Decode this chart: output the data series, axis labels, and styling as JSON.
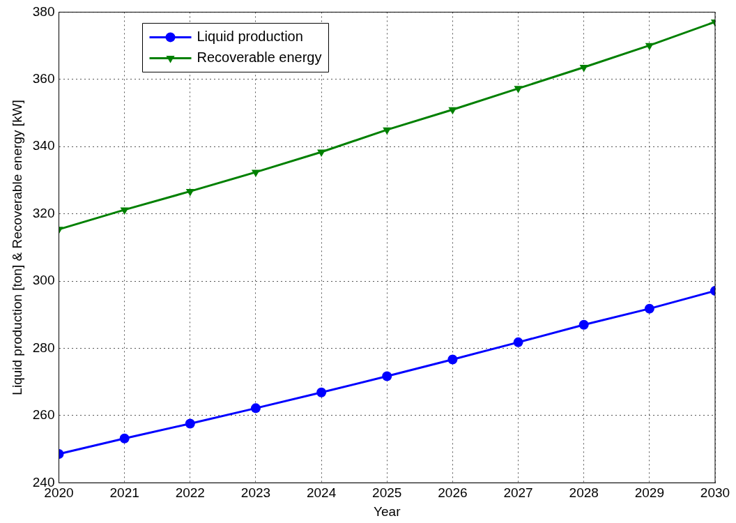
{
  "chart_data": {
    "type": "line",
    "xlabel": "Year",
    "ylabel": "Liquid production [ton] & Recoverable energy [kW]",
    "x": [
      2020,
      2021,
      2022,
      2023,
      2024,
      2025,
      2026,
      2027,
      2028,
      2029,
      2030
    ],
    "series": [
      {
        "name": "Liquid production",
        "color": "#0000ff",
        "marker": "circle",
        "values": [
          248.6,
          253.2,
          257.6,
          262.2,
          266.9,
          271.7,
          276.7,
          281.8,
          287.0,
          291.8,
          297.1
        ]
      },
      {
        "name": "Recoverable energy",
        "color": "#008000",
        "marker": "triangle",
        "values": [
          315.4,
          321.2,
          326.7,
          332.4,
          338.4,
          345.0,
          351.0,
          357.3,
          363.6,
          370.1,
          377.1
        ]
      }
    ],
    "xlim": [
      2020,
      2030
    ],
    "xticks": [
      2020,
      2021,
      2022,
      2023,
      2024,
      2025,
      2026,
      2027,
      2028,
      2029,
      2030
    ],
    "ylim": [
      240,
      380
    ],
    "yticks": [
      240,
      260,
      280,
      300,
      320,
      340,
      360,
      380
    ],
    "grid": true,
    "legend": "top left",
    "line_style": "solid"
  }
}
